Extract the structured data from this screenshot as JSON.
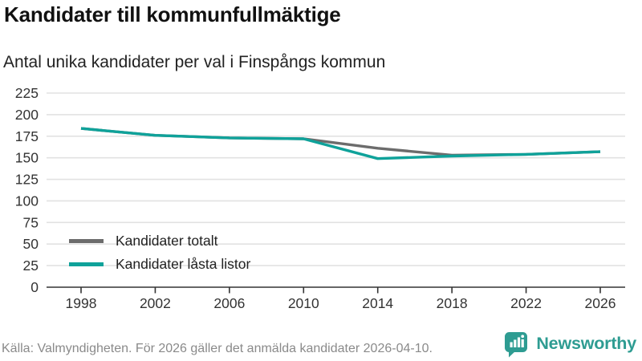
{
  "header": {
    "title": "Kandidater till kommunfullmäktige",
    "subtitle": "Antal unika kandidater per val i Finspångs kommun"
  },
  "legend": [
    {
      "label": "Kandidater totalt",
      "color": "#6c6c6c"
    },
    {
      "label": "Kandidater låsta listor",
      "color": "#0fa29a"
    }
  ],
  "chart_data": {
    "type": "line",
    "x": [
      1998,
      2002,
      2006,
      2010,
      2014,
      2018,
      2022,
      2026
    ],
    "series": [
      {
        "name": "Kandidater totalt",
        "color": "#6c6c6c",
        "values": [
          184,
          176,
          173,
          172,
          161,
          153,
          154,
          157
        ]
      },
      {
        "name": "Kandidater låsta listor",
        "color": "#0fa29a",
        "values": [
          184,
          176,
          173,
          172,
          149,
          152,
          154,
          157
        ]
      }
    ],
    "title": "Kandidater till kommunfullmäktige",
    "subtitle": "Antal unika kandidater per val i Finspångs kommun",
    "xlabel": "",
    "ylabel": "",
    "ylim": [
      0,
      225
    ],
    "ytick_step": 25,
    "grid": true,
    "legend_position": "inside-bottom-left"
  },
  "footer": {
    "source": "Källa: Valmyndigheten. För 2026 gäller det anmälda kandidater 2026-04-10.",
    "brand": "Newsworthy"
  },
  "colors": {
    "title": "#111111",
    "subtitle": "#222222",
    "grid": "#e2e2e2",
    "axis": "#333333",
    "axis_text": "#333333",
    "footer": "#8a8a8a",
    "brand": "#2e9c92",
    "series_total": "#6c6c6c",
    "series_locked": "#0fa29a"
  }
}
